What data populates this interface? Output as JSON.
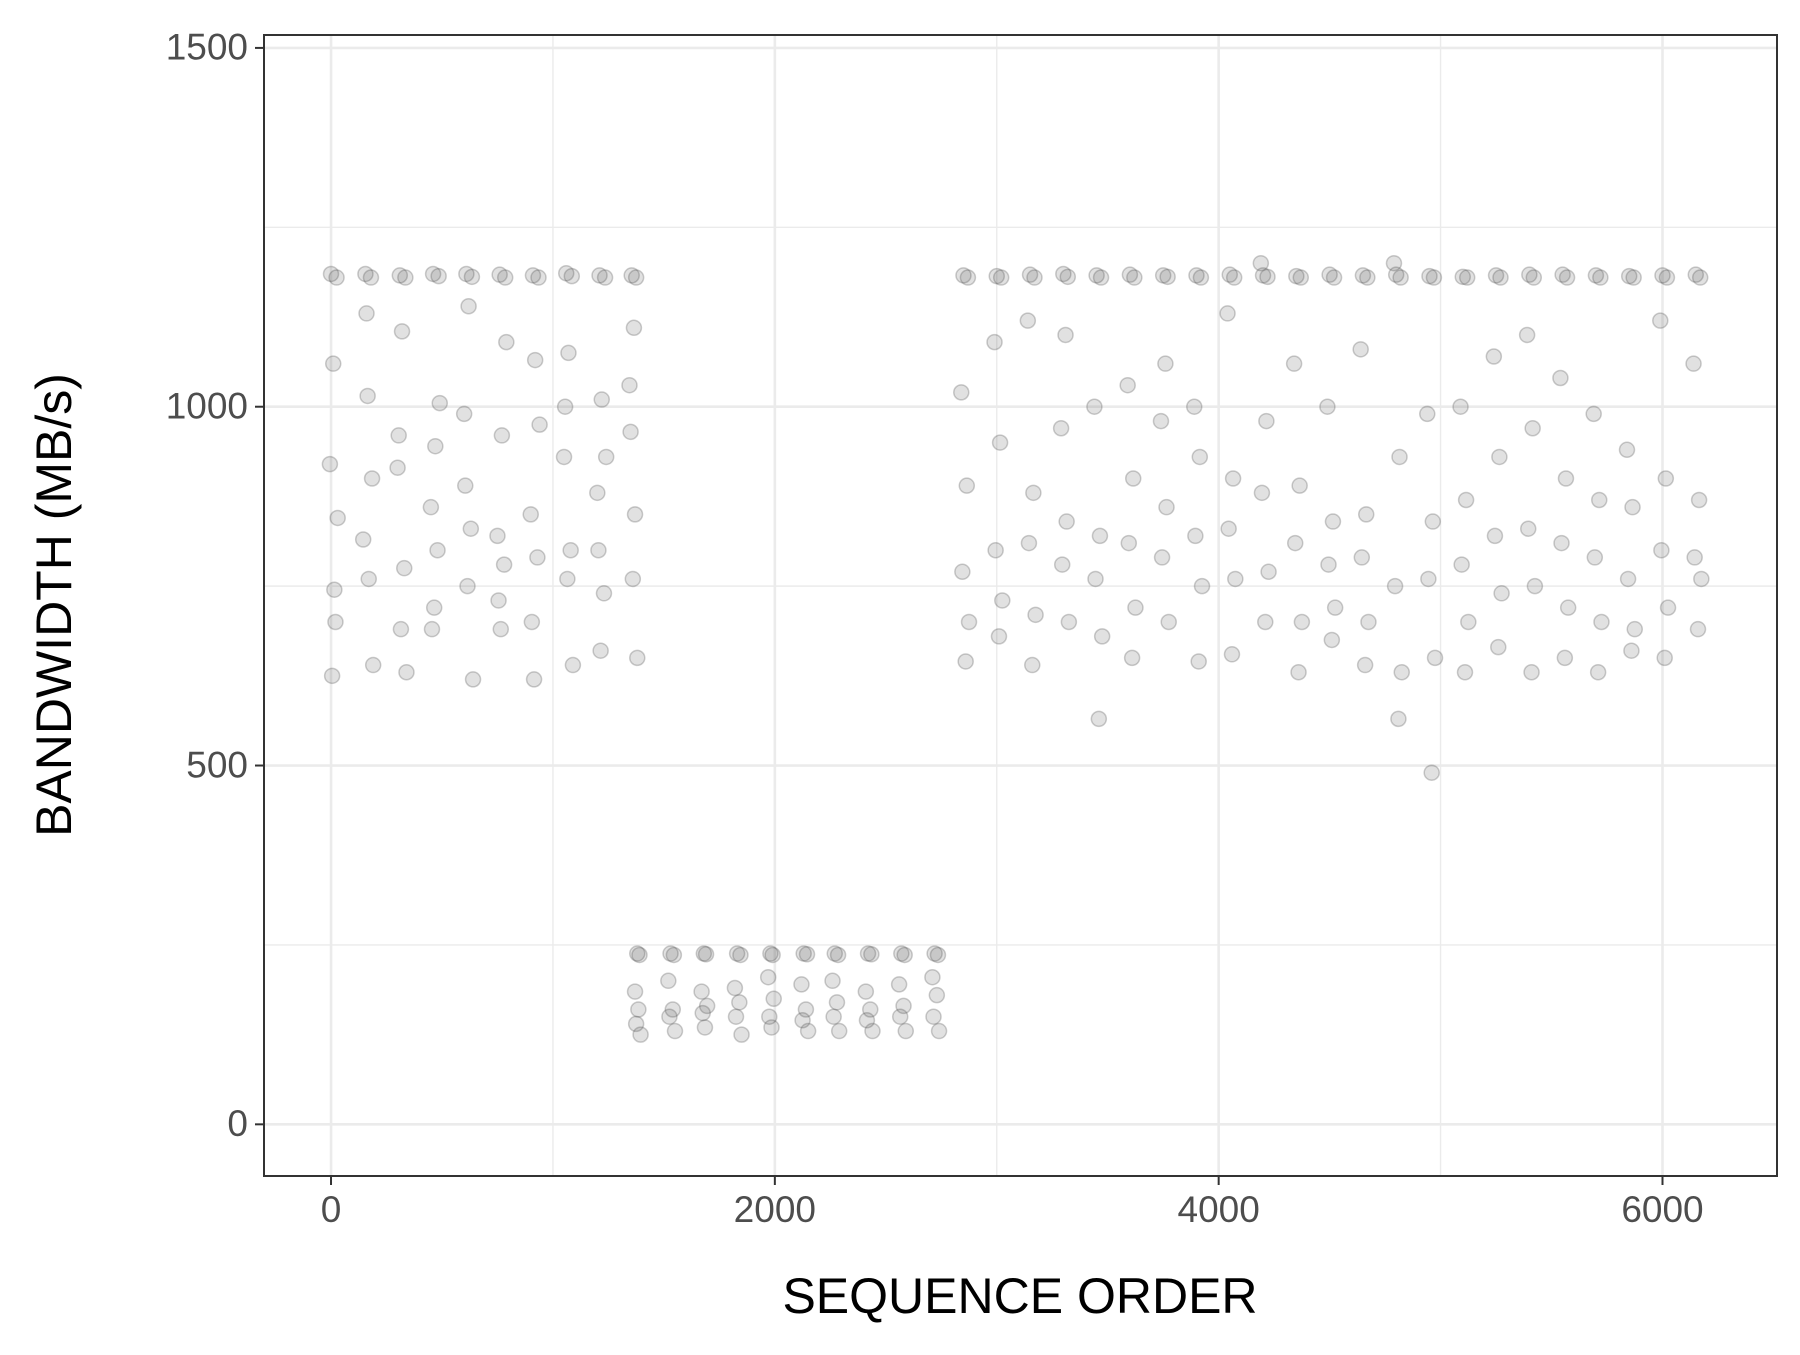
{
  "chart_data": {
    "type": "scatter",
    "x_label": "SEQUENCE ORDER",
    "y_label": "BANDWIDTH (MB/s)",
    "color": "#4d4d4d",
    "grid": true,
    "xlim": [
      -302,
      6516
    ],
    "ylim": [
      -72,
      1518
    ],
    "xticks": [
      0,
      2000,
      4000,
      6000
    ],
    "yticks": [
      0,
      500,
      1000,
      1500
    ],
    "x_minor_grid": [
      1000,
      3000,
      5000
    ],
    "y_minor_grid": [
      250,
      750,
      1250
    ],
    "x": [
      0,
      25,
      10,
      -5,
      30,
      15,
      20,
      5,
      155,
      180,
      165,
      185,
      145,
      170,
      190,
      160,
      310,
      335,
      320,
      300,
      330,
      315,
      340,
      305,
      460,
      485,
      470,
      450,
      480,
      465,
      490,
      455,
      610,
      635,
      620,
      600,
      630,
      615,
      640,
      605,
      760,
      785,
      770,
      750,
      780,
      765,
      790,
      755,
      910,
      935,
      920,
      900,
      930,
      915,
      940,
      905,
      1060,
      1085,
      1070,
      1050,
      1080,
      1065,
      1090,
      1055,
      1210,
      1235,
      1220,
      1200,
      1230,
      1215,
      1240,
      1205,
      1355,
      1375,
      1365,
      1350,
      1370,
      1360,
      1380,
      1345,
      1380,
      1390,
      1370,
      1385,
      1375,
      1395,
      1530,
      1545,
      1520,
      1540,
      1525,
      1550,
      1680,
      1690,
      1670,
      1695,
      1675,
      1685,
      1830,
      1845,
      1820,
      1840,
      1825,
      1850,
      1980,
      1990,
      1970,
      1995,
      1975,
      1985,
      2130,
      2145,
      2120,
      2140,
      2125,
      2150,
      2270,
      2285,
      2260,
      2280,
      2265,
      2290,
      2420,
      2435,
      2410,
      2430,
      2415,
      2440,
      2570,
      2585,
      2560,
      2580,
      2565,
      2590,
      2720,
      2735,
      2710,
      2730,
      2715,
      2740,
      2850,
      2870,
      2840,
      2865,
      2845,
      2875,
      2860,
      3000,
      3020,
      2990,
      3015,
      2995,
      3025,
      3010,
      3150,
      3170,
      3140,
      3165,
      3145,
      3175,
      3160,
      3300,
      3320,
      3290,
      3315,
      3295,
      3325,
      3310,
      3450,
      3470,
      3440,
      3465,
      3445,
      3475,
      3460,
      3600,
      3620,
      3590,
      3615,
      3595,
      3625,
      3610,
      3750,
      3770,
      3740,
      3765,
      3745,
      3775,
      3760,
      3900,
      3920,
      3890,
      3915,
      3895,
      3925,
      3910,
      4050,
      4070,
      4040,
      4065,
      4045,
      4075,
      4060,
      4200,
      4220,
      4190,
      4215,
      4195,
      4225,
      4210,
      4350,
      4370,
      4340,
      4365,
      4345,
      4375,
      4360,
      4500,
      4520,
      4490,
      4515,
      4495,
      4525,
      4510,
      4650,
      4670,
      4640,
      4665,
      4645,
      4675,
      4660,
      4800,
      4820,
      4790,
      4815,
      4795,
      4825,
      4810,
      4950,
      4970,
      4940,
      4965,
      4945,
      4975,
      4960,
      5100,
      5120,
      5090,
      5115,
      5095,
      5125,
      5110,
      5250,
      5270,
      5240,
      5265,
      5245,
      5275,
      5260,
      5400,
      5420,
      5390,
      5415,
      5395,
      5425,
      5410,
      5550,
      5570,
      5540,
      5565,
      5545,
      5575,
      5560,
      5700,
      5720,
      5690,
      5715,
      5695,
      5725,
      5710,
      5850,
      5870,
      5840,
      5865,
      5845,
      5875,
      5860,
      6000,
      6020,
      5990,
      6015,
      5995,
      6025,
      6010,
      6150,
      6170,
      6140,
      6165,
      6145,
      6175,
      6160
    ],
    "values": [
      1185,
      1180,
      1060,
      920,
      845,
      745,
      700,
      625,
      1185,
      1180,
      1015,
      900,
      815,
      760,
      640,
      1130,
      1183,
      1180,
      1105,
      915,
      775,
      690,
      630,
      960,
      1185,
      1182,
      945,
      860,
      800,
      720,
      1005,
      690,
      1185,
      1181,
      1140,
      990,
      830,
      750,
      620,
      890,
      1184,
      1180,
      960,
      820,
      780,
      690,
      1090,
      730,
      1183,
      1180,
      1065,
      850,
      790,
      620,
      975,
      700,
      1186,
      1182,
      1075,
      930,
      800,
      760,
      640,
      1000,
      1183,
      1180,
      1010,
      880,
      740,
      660,
      930,
      800,
      1183,
      1180,
      1110,
      965,
      850,
      760,
      650,
      1030,
      238,
      236,
      185,
      160,
      140,
      125,
      238,
      236,
      200,
      160,
      150,
      130,
      238,
      237,
      185,
      165,
      155,
      135,
      238,
      236,
      190,
      170,
      150,
      125,
      238,
      236,
      205,
      175,
      150,
      135,
      238,
      237,
      195,
      160,
      145,
      130,
      238,
      236,
      200,
      170,
      150,
      130,
      238,
      237,
      185,
      160,
      145,
      130,
      238,
      236,
      195,
      165,
      150,
      130,
      238,
      236,
      205,
      180,
      150,
      130,
      1183,
      1180,
      1020,
      890,
      770,
      700,
      645,
      1182,
      1180,
      1090,
      950,
      800,
      730,
      680,
      1184,
      1180,
      1120,
      880,
      810,
      710,
      640,
      1185,
      1181,
      970,
      840,
      780,
      700,
      1100,
      1183,
      1180,
      1000,
      820,
      760,
      680,
      565,
      1184,
      1180,
      1030,
      900,
      810,
      720,
      650,
      1183,
      1181,
      980,
      860,
      790,
      700,
      1060,
      1183,
      1180,
      1000,
      930,
      820,
      750,
      645,
      1184,
      1180,
      1130,
      900,
      830,
      760,
      655,
      1183,
      1181,
      1200,
      980,
      880,
      770,
      700,
      1182,
      1180,
      1060,
      890,
      810,
      700,
      630,
      1184,
      1180,
      1000,
      840,
      780,
      720,
      675,
      1183,
      1180,
      1080,
      850,
      790,
      700,
      640,
      1184,
      1180,
      1200,
      930,
      750,
      630,
      565,
      1182,
      1180,
      990,
      840,
      760,
      650,
      490,
      1181,
      1180,
      1000,
      870,
      780,
      700,
      630,
      1183,
      1180,
      1070,
      930,
      820,
      740,
      665,
      1184,
      1180,
      1100,
      970,
      830,
      750,
      630,
      1184,
      1180,
      1040,
      900,
      810,
      720,
      650,
      1183,
      1180,
      990,
      870,
      790,
      700,
      630,
      1182,
      1180,
      940,
      860,
      760,
      690,
      660,
      1183,
      1180,
      1120,
      900,
      800,
      720,
      650,
      1184,
      1180,
      1060,
      870,
      790,
      760,
      690
    ]
  }
}
